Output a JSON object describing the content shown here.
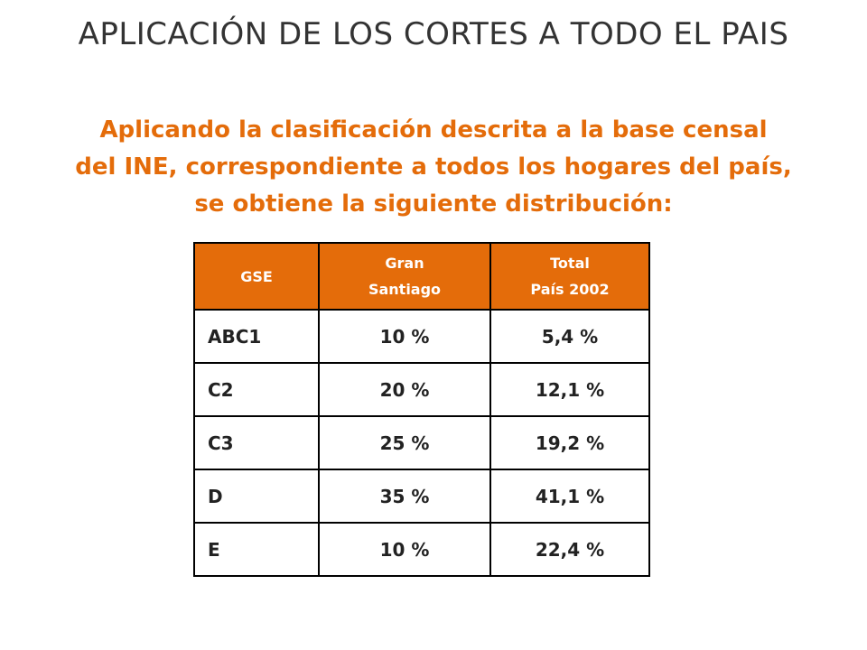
{
  "slide": {
    "title": "APLICACIÓN DE LOS CORTES A TODO EL PAIS",
    "subtitle_lines": [
      "Aplicando la clasificación descrita a la base censal",
      "del INE, correspondiente a todos los hogares del país,",
      "se obtiene la siguiente distribución:"
    ]
  },
  "table": {
    "headers": [
      {
        "lines": [
          "GSE"
        ]
      },
      {
        "lines": [
          "Gran",
          "Santiago"
        ]
      },
      {
        "lines": [
          "Total",
          "País 2002"
        ]
      }
    ],
    "rows": [
      {
        "gse": "ABC1",
        "gran_santiago": "10 %",
        "total_pais": "5,4 %"
      },
      {
        "gse": "C2",
        "gran_santiago": "20 %",
        "total_pais": "12,1 %"
      },
      {
        "gse": "C3",
        "gran_santiago": "25 %",
        "total_pais": "19,2 %"
      },
      {
        "gse": "D",
        "gran_santiago": "35 %",
        "total_pais": "41,1 %"
      },
      {
        "gse": "E",
        "gran_santiago": "10 %",
        "total_pais": "22,4 %"
      }
    ]
  },
  "colors": {
    "accent": "#e46c0a",
    "title_text": "#333333"
  }
}
